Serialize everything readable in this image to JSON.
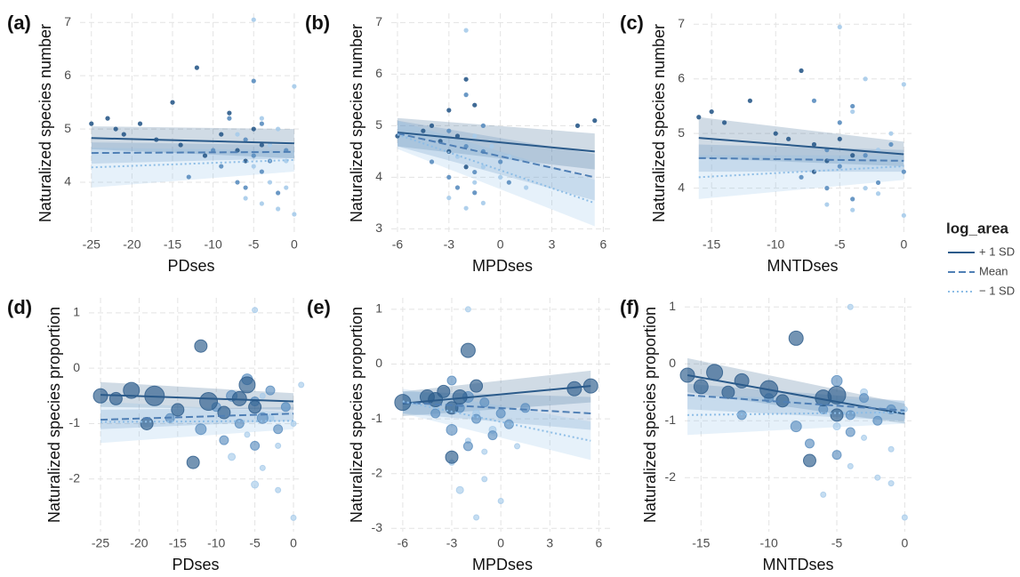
{
  "chart_data": [
    {
      "type": "scatter",
      "panel_label": "(a)",
      "xlabel": "PDses",
      "ylabel": "Naturalized species number",
      "xlim": [
        -26.4,
        1
      ],
      "ylim": [
        3.05,
        7.17
      ],
      "xticks": [
        -25,
        -20,
        -15,
        -10,
        -5,
        0
      ],
      "yticks": [
        4,
        5,
        6,
        7
      ],
      "grid": true,
      "series": [
        {
          "color": "#2a5a8a",
          "x": [
            -25,
            -23,
            -22,
            -21,
            -19,
            -17,
            -15,
            -14,
            -12,
            -11,
            -9,
            -8,
            -7,
            -6,
            -5,
            -4
          ],
          "values": [
            5.1,
            5.2,
            5.0,
            4.9,
            5.1,
            4.8,
            5.5,
            4.7,
            6.15,
            4.5,
            4.9,
            5.3,
            4.6,
            4.4,
            5.0,
            4.7
          ]
        },
        {
          "color": "#5a8dbf",
          "x": [
            -13,
            -10,
            -9,
            -8,
            -7,
            -6,
            -6,
            -5,
            -5,
            -4,
            -4,
            -3,
            -2,
            -1
          ],
          "values": [
            4.1,
            4.6,
            4.3,
            5.2,
            4.0,
            4.8,
            3.9,
            5.9,
            4.5,
            4.2,
            5.1,
            4.4,
            3.8,
            4.6
          ]
        },
        {
          "color": "#a6cbea",
          "x": [
            -7,
            -6,
            -5,
            -5,
            -4,
            -4,
            -3,
            -3,
            -2,
            -2,
            -1,
            -1,
            0,
            0
          ],
          "values": [
            4.9,
            3.7,
            7.05,
            4.3,
            3.6,
            5.2,
            4.0,
            4.7,
            3.5,
            5.0,
            3.9,
            4.4,
            5.8,
            3.4
          ]
        }
      ],
      "fits": [
        {
          "x": [
            -25,
            0
          ],
          "y": [
            4.83,
            4.73
          ],
          "lower": [
            4.62,
            4.45
          ],
          "upper": [
            5.05,
            5.0
          ]
        },
        {
          "x": [
            -25,
            0
          ],
          "y": [
            4.55,
            4.57
          ],
          "lower": [
            4.35,
            4.45
          ],
          "upper": [
            4.75,
            4.7
          ]
        },
        {
          "x": [
            -25,
            0
          ],
          "y": [
            4.28,
            4.42
          ],
          "lower": [
            3.9,
            4.2
          ],
          "upper": [
            4.65,
            4.6
          ]
        }
      ]
    },
    {
      "type": "scatter",
      "panel_label": "(b)",
      "xlabel": "MPDses",
      "ylabel": "Naturalized species number",
      "xlim": [
        -6.36,
        6.6
      ],
      "ylim": [
        2.92,
        7.18
      ],
      "xticks": [
        -6,
        -3,
        0,
        3,
        6
      ],
      "yticks": [
        3,
        4,
        5,
        6,
        7
      ],
      "grid": true,
      "series": [
        {
          "color": "#2a5a8a",
          "x": [
            -6,
            -4.5,
            -4,
            -3.5,
            -3,
            -3,
            -2.5,
            -2,
            -2,
            -1.5,
            4.5,
            5.5
          ],
          "values": [
            4.8,
            4.9,
            5.0,
            4.7,
            5.3,
            4.5,
            4.8,
            5.9,
            4.2,
            5.4,
            5.0,
            5.1
          ]
        },
        {
          "color": "#5a8dbf",
          "x": [
            -4,
            -3,
            -3,
            -2.5,
            -2,
            -2,
            -1.5,
            -1.5,
            -1,
            -1,
            0,
            0.5
          ],
          "values": [
            4.3,
            4.0,
            4.9,
            3.8,
            4.6,
            5.6,
            4.1,
            3.7,
            4.5,
            5.0,
            4.3,
            3.9
          ]
        },
        {
          "color": "#a6cbea",
          "x": [
            -3,
            -2.5,
            -2,
            -2,
            -1.5,
            -1.5,
            -1,
            -1,
            -0.5,
            0,
            0.5,
            1.5
          ],
          "values": [
            3.6,
            4.4,
            6.85,
            3.4,
            4.8,
            3.9,
            4.2,
            3.5,
            4.6,
            4.0,
            4.4,
            3.8
          ]
        }
      ],
      "fits": [
        {
          "x": [
            -6,
            5.5
          ],
          "y": [
            4.87,
            4.5
          ],
          "lower": [
            4.6,
            4.15
          ],
          "upper": [
            5.15,
            4.85
          ]
        },
        {
          "x": [
            -6,
            5.5
          ],
          "y": [
            4.85,
            4.0
          ],
          "lower": [
            4.6,
            3.55
          ],
          "upper": [
            5.1,
            4.45
          ]
        },
        {
          "x": [
            -6,
            5.5
          ],
          "y": [
            4.83,
            3.5
          ],
          "lower": [
            4.55,
            3.05
          ],
          "upper": [
            5.1,
            3.95
          ]
        }
      ]
    },
    {
      "type": "scatter",
      "panel_label": "(c)",
      "xlabel": "MNTDses",
      "ylabel": "Naturalized species number",
      "xlim": [
        -16.4,
        0.6
      ],
      "ylim": [
        3.18,
        7.2
      ],
      "xticks": [
        -15,
        -10,
        -5,
        0
      ],
      "yticks": [
        4,
        5,
        6,
        7
      ],
      "grid": true,
      "series": [
        {
          "color": "#2a5a8a",
          "x": [
            -16,
            -15,
            -14,
            -12,
            -10,
            -9,
            -8,
            -7,
            -7,
            -6,
            -5,
            -4
          ],
          "values": [
            5.3,
            5.4,
            5.2,
            5.6,
            5.0,
            4.9,
            6.15,
            4.3,
            4.8,
            4.5,
            4.9,
            4.6
          ]
        },
        {
          "color": "#5a8dbf",
          "x": [
            -8,
            -7,
            -6,
            -6,
            -5,
            -5,
            -4,
            -4,
            -3,
            -2,
            -1,
            0
          ],
          "values": [
            4.2,
            5.6,
            4.7,
            4.0,
            5.2,
            4.4,
            3.8,
            5.5,
            4.6,
            4.1,
            4.8,
            4.3
          ]
        },
        {
          "color": "#a6cbea",
          "x": [
            -6,
            -5,
            -5,
            -4,
            -4,
            -3,
            -3,
            -2,
            -2,
            -1,
            0,
            0
          ],
          "values": [
            3.7,
            6.95,
            4.5,
            3.6,
            5.4,
            4.0,
            6.0,
            3.9,
            4.7,
            5.0,
            3.5,
            5.9
          ]
        }
      ],
      "fits": [
        {
          "x": [
            -16,
            0
          ],
          "y": [
            4.92,
            4.62
          ],
          "lower": [
            4.55,
            4.4
          ],
          "upper": [
            5.3,
            4.85
          ]
        },
        {
          "x": [
            -16,
            0
          ],
          "y": [
            4.55,
            4.5
          ],
          "lower": [
            4.3,
            4.3
          ],
          "upper": [
            4.8,
            4.7
          ]
        },
        {
          "x": [
            -16,
            0
          ],
          "y": [
            4.2,
            4.4
          ],
          "lower": [
            3.8,
            4.15
          ],
          "upper": [
            4.6,
            4.6
          ]
        }
      ]
    },
    {
      "type": "bubble",
      "panel_label": "(d)",
      "xlabel": "PDses",
      "ylabel": "Naturalized species proportion",
      "xlim": [
        -26.5,
        1.15
      ],
      "ylim": [
        -2.95,
        1.27
      ],
      "xticks": [
        -25,
        -20,
        -15,
        -10,
        -5,
        0
      ],
      "yticks": [
        -2,
        -1,
        0,
        1
      ],
      "grid": true,
      "series": [
        {
          "color": "#2a5a8a",
          "x": [
            -25,
            -23,
            -21,
            -19,
            -18,
            -15,
            -13,
            -12,
            -11,
            -9,
            -7,
            -6,
            -5
          ],
          "values": [
            -0.5,
            -0.55,
            -0.4,
            -1.0,
            -0.5,
            -0.75,
            -1.7,
            0.4,
            -0.6,
            -0.8,
            -0.55,
            -0.3,
            -0.7
          ],
          "sizes": [
            8,
            7,
            9,
            7,
            11,
            7,
            7,
            7,
            10,
            7,
            8,
            9,
            7
          ]
        },
        {
          "color": "#5a8dbf",
          "x": [
            -16,
            -12,
            -10,
            -9,
            -8,
            -7,
            -6,
            -5,
            -5,
            -4,
            -3,
            -2,
            -1
          ],
          "values": [
            -0.9,
            -1.1,
            -0.7,
            -1.3,
            -0.5,
            -1.0,
            -0.2,
            -0.6,
            -1.4,
            -0.9,
            -0.4,
            -1.1,
            -0.7
          ],
          "sizes": [
            5,
            6,
            5,
            5,
            6,
            5,
            6,
            5,
            5,
            6,
            5,
            5,
            5
          ]
        },
        {
          "color": "#a6cbea",
          "x": [
            -8,
            -6,
            -5,
            -5,
            -4,
            -4,
            -3,
            -2,
            -2,
            -1,
            0,
            0,
            1
          ],
          "values": [
            -1.6,
            -1.2,
            1.05,
            -2.1,
            -0.5,
            -1.8,
            -0.9,
            -1.4,
            -2.2,
            -0.7,
            -1.0,
            -2.7,
            -0.3
          ],
          "sizes": [
            4,
            3,
            3,
            4,
            3,
            3,
            4,
            3,
            3,
            4,
            3,
            3,
            3
          ]
        }
      ],
      "fits": [
        {
          "x": [
            -25,
            0
          ],
          "y": [
            -0.48,
            -0.6
          ],
          "lower": [
            -0.7,
            -0.75
          ],
          "upper": [
            -0.25,
            -0.45
          ]
        },
        {
          "x": [
            -25,
            0
          ],
          "y": [
            -0.93,
            -0.82
          ],
          "lower": [
            -1.1,
            -0.95
          ],
          "upper": [
            -0.75,
            -0.7
          ]
        },
        {
          "x": [
            -25,
            0
          ],
          "y": [
            -0.97,
            -0.95
          ],
          "lower": [
            -1.35,
            -1.1
          ],
          "upper": [
            -0.6,
            -0.8
          ]
        }
      ]
    },
    {
      "type": "bubble",
      "panel_label": "(e)",
      "xlabel": "MPDses",
      "ylabel": "Naturalized species proportion",
      "xlim": [
        -6.7,
        6.9
      ],
      "ylim": [
        -3.06,
        1.21
      ],
      "xticks": [
        -6,
        -3,
        0,
        3,
        6
      ],
      "yticks": [
        -3,
        -2,
        -1,
        0,
        1
      ],
      "grid": true,
      "series": [
        {
          "color": "#2a5a8a",
          "x": [
            -6,
            -4.5,
            -4,
            -3.5,
            -3,
            -2.5,
            -2,
            -1.5,
            -3,
            4.5,
            5.5
          ],
          "values": [
            -0.7,
            -0.6,
            -0.65,
            -0.5,
            -1.7,
            -0.6,
            0.25,
            -0.4,
            -0.8,
            -0.45,
            -0.4
          ],
          "sizes": [
            9,
            8,
            8,
            7,
            7,
            8,
            8,
            7,
            7,
            8,
            8
          ]
        },
        {
          "color": "#5a8dbf",
          "x": [
            -4,
            -3,
            -3,
            -2.5,
            -2,
            -2,
            -1.5,
            -1,
            -0.5,
            0,
            0.5,
            1.5
          ],
          "values": [
            -0.9,
            -0.3,
            -1.2,
            -0.8,
            -1.5,
            -0.6,
            -1.0,
            -0.7,
            -1.3,
            -0.9,
            -1.1,
            -0.8
          ],
          "sizes": [
            5,
            5,
            6,
            5,
            5,
            6,
            5,
            5,
            5,
            5,
            5,
            5
          ]
        },
        {
          "color": "#a6cbea",
          "x": [
            -3,
            -2.5,
            -2,
            -2,
            -1.5,
            -1.5,
            -1,
            -1,
            -0.5,
            0,
            1
          ],
          "values": [
            -1.8,
            -2.3,
            1.0,
            -1.4,
            -2.8,
            -0.9,
            -1.6,
            -2.1,
            -1.2,
            -2.5,
            -1.5
          ],
          "sizes": [
            3,
            4,
            3,
            3,
            3,
            4,
            3,
            3,
            4,
            3,
            3
          ]
        }
      ],
      "fits": [
        {
          "x": [
            -6,
            5.5
          ],
          "y": [
            -0.72,
            -0.4
          ],
          "lower": [
            -0.95,
            -0.7
          ],
          "upper": [
            -0.5,
            -0.12
          ]
        },
        {
          "x": [
            -6,
            5.5
          ],
          "y": [
            -0.7,
            -0.9
          ],
          "lower": [
            -0.9,
            -1.2
          ],
          "upper": [
            -0.5,
            -0.6
          ]
        },
        {
          "x": [
            -6,
            5.5
          ],
          "y": [
            -0.68,
            -1.4
          ],
          "lower": [
            -0.9,
            -1.75
          ],
          "upper": [
            -0.45,
            -1.05
          ]
        }
      ]
    },
    {
      "type": "bubble",
      "panel_label": "(f)",
      "xlabel": "MNTDses",
      "ylabel": "Naturalized species proportion",
      "xlim": [
        -16.2,
        0.5
      ],
      "ylim": [
        -2.95,
        1.16
      ],
      "xticks": [
        -15,
        -10,
        -5,
        0
      ],
      "yticks": [
        -2,
        -1,
        0,
        1
      ],
      "grid": true,
      "series": [
        {
          "color": "#2a5a8a",
          "x": [
            -16,
            -15,
            -14,
            -13,
            -12,
            -10,
            -9,
            -8,
            -7,
            -6,
            -5,
            -5
          ],
          "values": [
            -0.2,
            -0.4,
            -0.15,
            -0.5,
            -0.3,
            -0.45,
            -0.65,
            0.45,
            -1.7,
            -0.6,
            -0.55,
            -0.9
          ],
          "sizes": [
            8,
            8,
            9,
            7,
            8,
            10,
            7,
            8,
            7,
            9,
            10,
            7
          ]
        },
        {
          "color": "#5a8dbf",
          "x": [
            -12,
            -10,
            -8,
            -7,
            -6,
            -5,
            -5,
            -4,
            -4,
            -3,
            -2,
            -1
          ],
          "values": [
            -0.9,
            -0.6,
            -1.1,
            -1.4,
            -0.8,
            -0.3,
            -1.6,
            -0.9,
            -1.2,
            -0.6,
            -1.0,
            -0.8
          ],
          "sizes": [
            5,
            5,
            6,
            5,
            5,
            6,
            5,
            5,
            5,
            5,
            5,
            5
          ]
        },
        {
          "color": "#a6cbea",
          "x": [
            -6,
            -5,
            -4,
            -4,
            -3,
            -3,
            -2,
            -2,
            -1,
            -1,
            0,
            0
          ],
          "values": [
            -2.3,
            -1.1,
            1.0,
            -1.8,
            -0.5,
            -1.3,
            -2.0,
            -0.9,
            -1.5,
            -2.1,
            -2.7,
            -0.8
          ],
          "sizes": [
            3,
            4,
            3,
            3,
            4,
            3,
            3,
            4,
            3,
            3,
            3,
            3
          ]
        }
      ],
      "fits": [
        {
          "x": [
            -16,
            0
          ],
          "y": [
            -0.2,
            -0.88
          ],
          "lower": [
            -0.5,
            -1.05
          ],
          "upper": [
            0.1,
            -0.7
          ]
        },
        {
          "x": [
            -16,
            0
          ],
          "y": [
            -0.55,
            -0.82
          ],
          "lower": [
            -0.8,
            -1.0
          ],
          "upper": [
            -0.35,
            -0.65
          ]
        },
        {
          "x": [
            -16,
            0
          ],
          "y": [
            -0.9,
            -0.85
          ],
          "lower": [
            -1.25,
            -1.05
          ],
          "upper": [
            -0.55,
            -0.65
          ]
        }
      ]
    }
  ],
  "legend": {
    "title": "log_area",
    "items": [
      {
        "name": "+ 1 SD",
        "color": "#2a5a8a",
        "dash": "solid"
      },
      {
        "name": "Mean",
        "color": "#4f7fb5",
        "dash": "dashed"
      },
      {
        "name": "− 1 SD",
        "color": "#8dbde6",
        "dash": "dotted"
      }
    ]
  }
}
